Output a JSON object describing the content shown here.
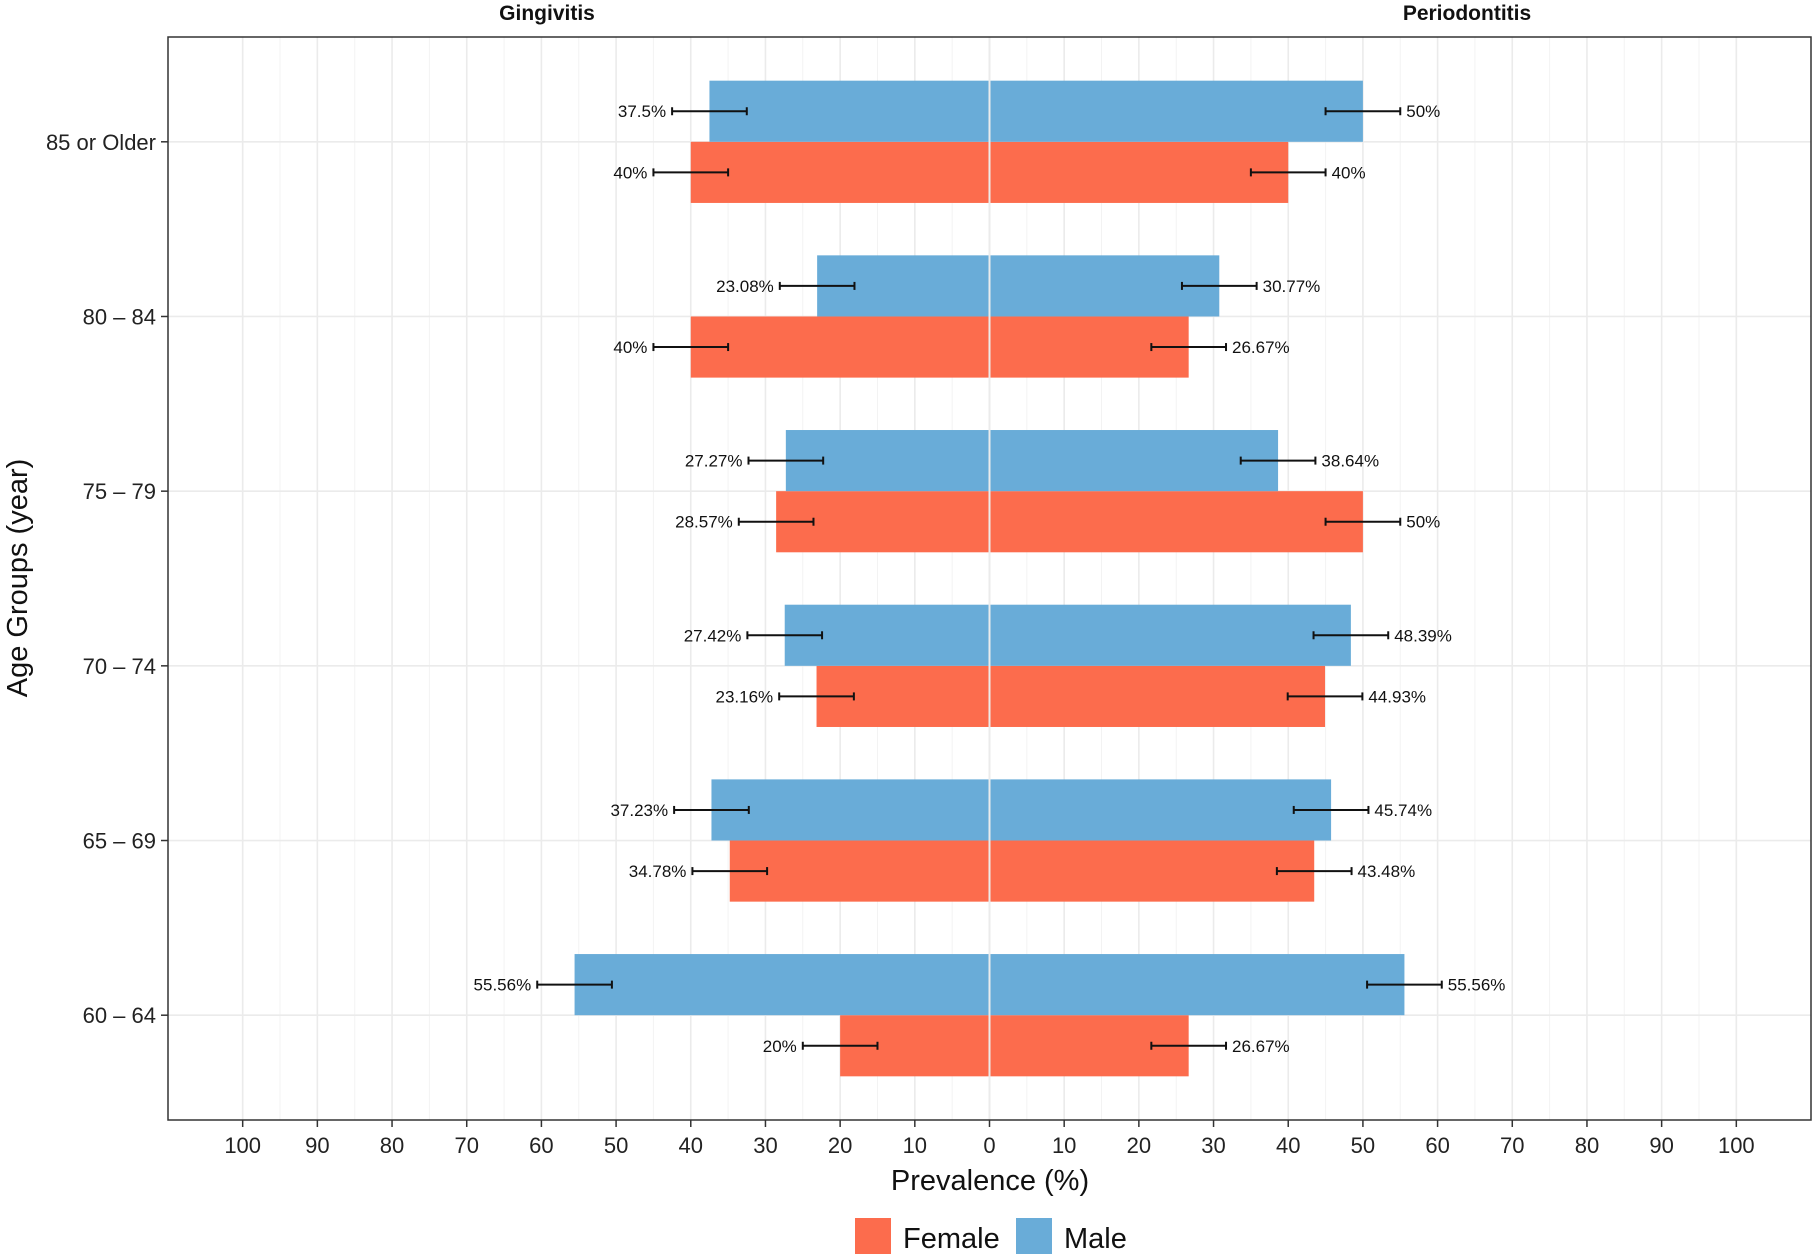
{
  "chart_data": {
    "type": "bar",
    "orientation": "horizontal",
    "layout": "back-to-back",
    "panels": [
      "Gingivitis",
      "Periodontitis"
    ],
    "categories": [
      "60 – 64",
      "65 – 69",
      "70 – 74",
      "75 – 79",
      "80 – 84",
      "85 or Older"
    ],
    "series": [
      {
        "name": "Female",
        "color": "#fc6c4d",
        "gingivitis": [
          20,
          34.78,
          23.16,
          28.57,
          40,
          40
        ],
        "gingivitis_labels": [
          "20%",
          "34.78%",
          "23.16%",
          "28.57%",
          "40%",
          "40%"
        ],
        "periodontitis": [
          26.67,
          43.48,
          44.93,
          50,
          26.67,
          40
        ],
        "periodontitis_labels": [
          "26.67%",
          "43.48%",
          "44.93%",
          "50%",
          "26.67%",
          "40%"
        ]
      },
      {
        "name": "Male",
        "color": "#69acd8",
        "gingivitis": [
          55.56,
          37.23,
          27.42,
          27.27,
          23.08,
          37.5
        ],
        "gingivitis_labels": [
          "55.56%",
          "37.23%",
          "27.42%",
          "27.27%",
          "23.08%",
          "37.5%"
        ],
        "periodontitis": [
          55.56,
          45.74,
          48.39,
          38.64,
          30.77,
          50
        ],
        "periodontitis_labels": [
          "55.56%",
          "45.74%",
          "48.39%",
          "38.64%",
          "30.77%",
          "50%"
        ]
      }
    ],
    "error_bar_halfwidth": 5,
    "xlabel": "Prevalence (%)",
    "ylabel": "Age Groups (year)",
    "xlim": [
      -110,
      110
    ],
    "x_ticks": [
      -100,
      -90,
      -80,
      -70,
      -60,
      -50,
      -40,
      -30,
      -20,
      -10,
      0,
      10,
      20,
      30,
      40,
      50,
      60,
      70,
      80,
      90,
      100
    ],
    "x_tick_labels": [
      "100",
      "90",
      "80",
      "70",
      "60",
      "50",
      "40",
      "30",
      "20",
      "10",
      "0",
      "10",
      "20",
      "30",
      "40",
      "50",
      "60",
      "70",
      "80",
      "90",
      "100"
    ],
    "grid": true,
    "legend_position": "bottom"
  }
}
